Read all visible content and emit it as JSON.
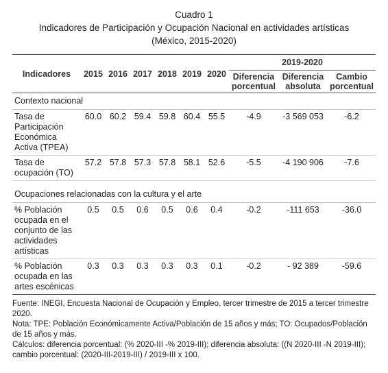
{
  "title": "Cuadro 1",
  "subtitle": [
    "Indicadores de Participación y Ocupación Nacional en actividades artísticas",
    "(México, 2015-2020)"
  ],
  "table": {
    "header": {
      "indicator": "Indicadores",
      "years": [
        "2015",
        "2016",
        "2017",
        "2018",
        "2019",
        "2020"
      ],
      "group": "2019-2020",
      "group_columns": [
        "Diferencia porcentual",
        "Diferencia absoluta",
        "Cambio porcentual"
      ]
    },
    "sections": [
      {
        "label": "Contexto nacional",
        "rows": [
          {
            "indicator": "Tasa de Participación Económica Activa (TPEA)",
            "values": [
              "60.0",
              "60.2",
              "59.4",
              "59.8",
              "60.4",
              "55.5",
              "-4.9",
              "-3 569 053",
              "-6.2"
            ]
          },
          {
            "indicator": "Tasa de ocupación (TO)",
            "values": [
              "57.2",
              "57.8",
              "57.3",
              "57.8",
              "58.1",
              "52.6",
              "-5.5",
              "-4 190 906",
              "-7.6"
            ]
          }
        ]
      },
      {
        "label": "Ocupaciones relacionadas con la cultura y el arte",
        "rows": [
          {
            "indicator": "% Población ocupada en el conjunto de las actividades artísticas",
            "values": [
              "0.5",
              "0.5",
              "0.6",
              "0.5",
              "0.6",
              "0.4",
              "-0.2",
              "-111 653",
              "-36.0"
            ]
          },
          {
            "indicator": "% Población ocupada en las artes escénicas",
            "values": [
              "0.3",
              "0.3",
              "0.3",
              "0.3",
              "0.3",
              "0.1",
              "-0.2",
              "- 92 389",
              "-59.6"
            ]
          }
        ]
      }
    ]
  },
  "notes": [
    "Fuente: INEGI, Encuesta Nacional de Ocupación y Empleo, tercer trimestre de 2015 a tercer trimestre 2020.",
    "Nota: TPE: Población Económicamente Activa/Población de 15 años y más; TO: Ocupados/Población de 15 años y más.",
    "Cálculos: diferencia porcentual: (% 2020-III -% 2019-III); diferencia absoluta: ((N 2020-III -N 2019-III); cambio porcentual: (2020-III-2019-III) / 2019-III x 100."
  ]
}
